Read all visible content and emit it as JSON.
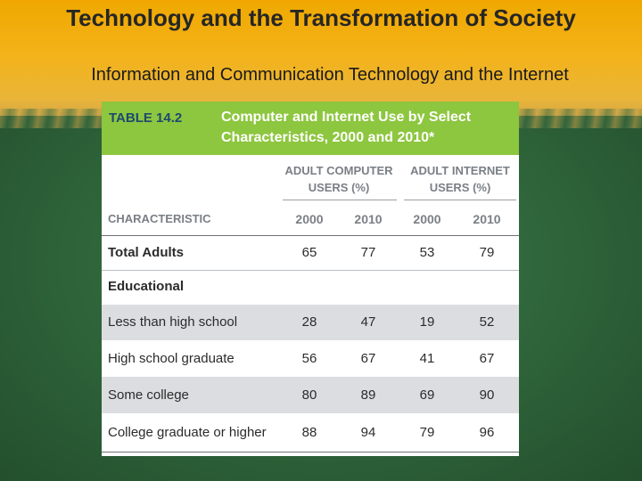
{
  "slide": {
    "title": "Technology and the Transformation of Society",
    "subtitle": "Information and Communication Technology and the Internet"
  },
  "table": {
    "number": "TABLE 14.2",
    "caption": "Computer and Internet Use by Select Characteristics, 2000 and 2010*",
    "group_headers": [
      "ADULT COMPUTER USERS (%)",
      "ADULT INTERNET USERS (%)"
    ],
    "characteristic_header": "CHARACTERISTIC",
    "years": [
      "2000",
      "2010",
      "2000",
      "2010"
    ],
    "rows": [
      {
        "label": "Total Adults",
        "values": [
          "65",
          "77",
          "53",
          "79"
        ]
      },
      {
        "label": "Educational",
        "values": []
      },
      {
        "label": "Less than high school",
        "values": [
          "28",
          "47",
          "19",
          "52"
        ]
      },
      {
        "label": "High school graduate",
        "values": [
          "56",
          "67",
          "41",
          "67"
        ]
      },
      {
        "label": "Some college",
        "values": [
          "80",
          "89",
          "69",
          "90"
        ]
      },
      {
        "label": "College graduate or higher",
        "values": [
          "88",
          "94",
          "79",
          "96"
        ]
      }
    ]
  }
}
